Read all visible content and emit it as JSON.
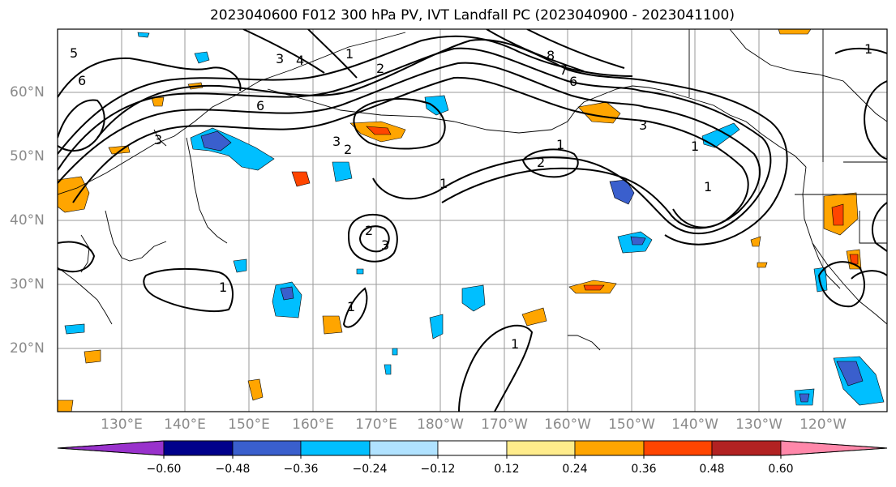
{
  "title": "2023040600 F012 300 hPa PV, IVT Landfall PC (2023040900 - 2023041100)",
  "map": {
    "lat_labels": [
      "60°N",
      "50°N",
      "40°N",
      "30°N",
      "20°N"
    ],
    "lon_labels": [
      "130°E",
      "140°E",
      "150°E",
      "160°E",
      "170°E",
      "180°W",
      "170°W",
      "160°W",
      "150°W",
      "140°W",
      "130°W",
      "120°W"
    ],
    "contour_labels": [
      "6",
      "5",
      "4",
      "3",
      "1",
      "2",
      "8",
      "7",
      "6",
      "6",
      "3",
      "2",
      "3",
      "1",
      "2",
      "1",
      "3",
      "2",
      "1",
      "1",
      "1",
      "1",
      "3",
      "1",
      "1"
    ]
  },
  "colorbar": {
    "tick_labels": [
      "−0.60",
      "−0.48",
      "−0.36",
      "−0.24",
      "−0.12",
      "0.12",
      "0.24",
      "0.36",
      "0.48",
      "0.60"
    ],
    "colors": [
      "#9932cc",
      "#00008b",
      "#3a5fcd",
      "#00bfff",
      "#b0e2ff",
      "#ffffff",
      "#ffec8b",
      "#ffa500",
      "#ff4500",
      "#b22222",
      "#ff88aa"
    ]
  }
}
